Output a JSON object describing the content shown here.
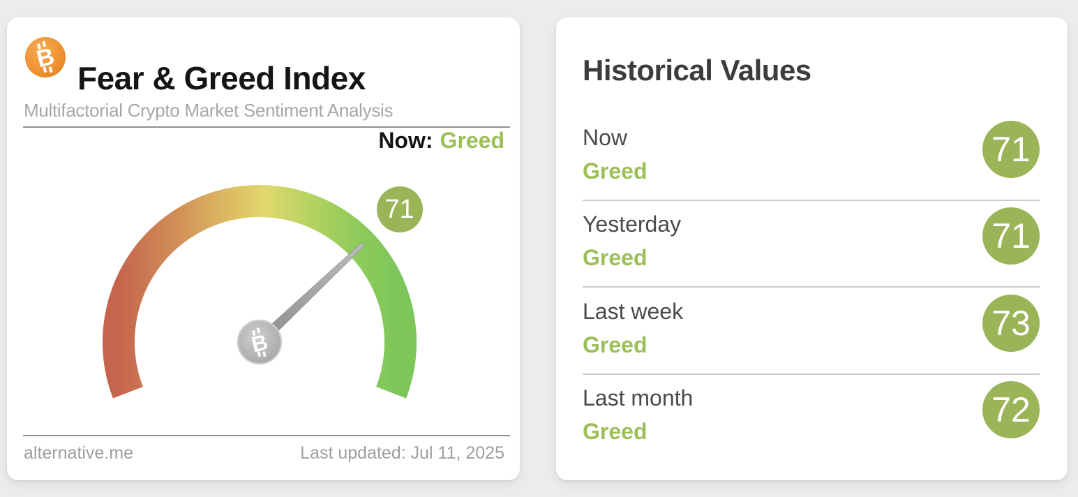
{
  "left_card": {
    "title": "Fear & Greed Index",
    "subtitle": "Multifactorial Crypto Market Sentiment Analysis",
    "now_label": "Now:",
    "source": "alternative.me",
    "last_updated": "Last updated: Jul 11, 2025"
  },
  "historical_card": {
    "title": "Historical Values"
  },
  "chart_data": {
    "type": "gauge",
    "title": "Fear & Greed Index",
    "min": 0,
    "max": 100,
    "value": 71,
    "classification": "Greed",
    "arc_span_degrees": 222,
    "arc_colors": [
      "#c5654e",
      "#d29257",
      "#e0d86e",
      "#b5d260",
      "#7cc65a"
    ],
    "historical": [
      {
        "period": "Now",
        "classification": "Greed",
        "value": 71
      },
      {
        "period": "Yesterday",
        "classification": "Greed",
        "value": 71
      },
      {
        "period": "Last week",
        "classification": "Greed",
        "value": 73
      },
      {
        "period": "Last month",
        "classification": "Greed",
        "value": 72
      }
    ]
  },
  "colors": {
    "page_background": "#ececec",
    "card_background": "#ffffff",
    "accent_green_text": "#9cbf58",
    "accent_green_badge": "#9ab457",
    "bitcoin_orange": "#ef9434",
    "needle_gray": "#a3a3a3",
    "subtitle_gray": "#a7a7a7"
  },
  "icons": {
    "bitcoin_glyph": "B"
  }
}
